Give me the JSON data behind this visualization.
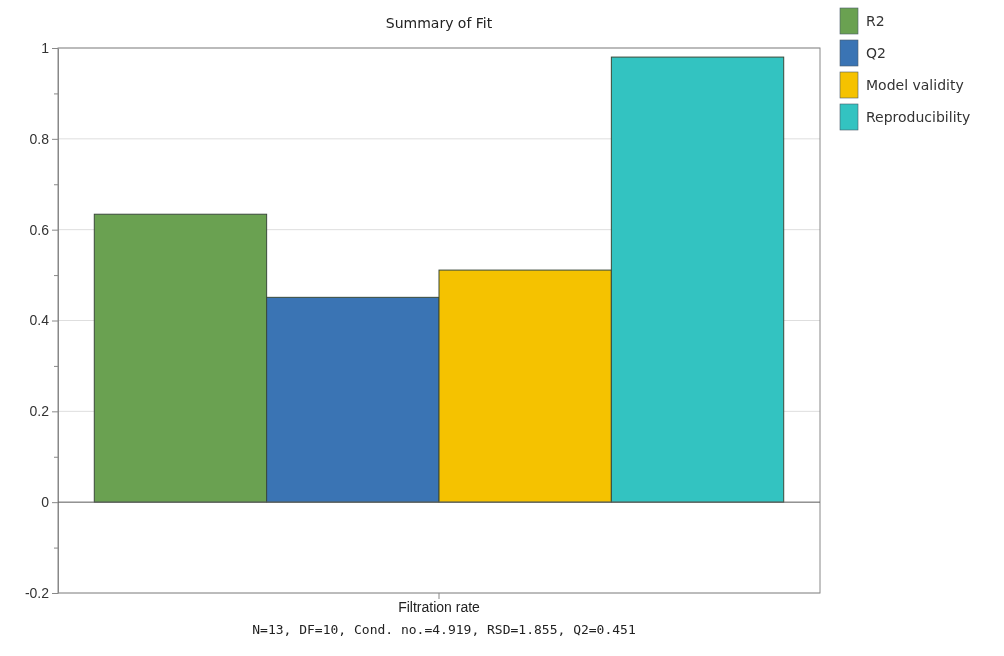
{
  "chart_data": {
    "type": "bar",
    "title": "Summary of Fit",
    "categories": [
      "Filtration rate"
    ],
    "series": [
      {
        "name": "R2",
        "color": "#6aa151",
        "values": [
          0.634
        ]
      },
      {
        "name": "Q2",
        "color": "#3a74b4",
        "values": [
          0.451
        ]
      },
      {
        "name": "Model validity",
        "color": "#f5c200",
        "values": [
          0.511
        ]
      },
      {
        "name": "Reproducibility",
        "color": "#33c3c1",
        "values": [
          0.98
        ]
      }
    ],
    "ylim": [
      -0.2,
      1
    ],
    "yticks": [
      -0.2,
      {
        "value": -0.1,
        "label": null
      },
      0,
      {
        "value": 0.1,
        "label": null
      },
      0.2,
      {
        "value": 0.3,
        "label": null
      },
      0.4,
      {
        "value": 0.5,
        "label": null
      },
      0.6,
      {
        "value": 0.7,
        "label": null
      },
      0.8,
      {
        "value": 0.9,
        "label": null
      },
      1
    ],
    "grid": "y",
    "legend": "top right",
    "annotations": [
      "N=13, DF=10, Cond. no.=4.919, RSD=1.855, Q2=0.451"
    ]
  }
}
